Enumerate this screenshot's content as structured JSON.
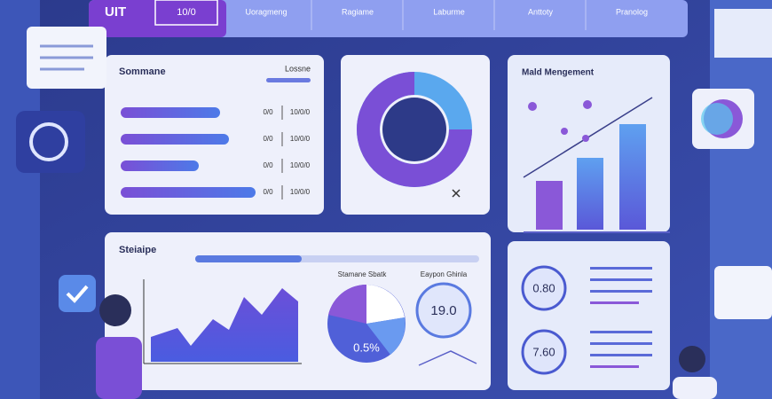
{
  "header": {
    "logo": "UIT",
    "badge": "10/0",
    "tabs": [
      "Uoragmeng",
      "Ragiame",
      "Laburme",
      "Anttoty",
      "Pranolog"
    ]
  },
  "summary": {
    "title": "Sommane",
    "link": "Lossne",
    "rows": [
      {
        "label": "0/0",
        "value": "10/0/0"
      },
      {
        "label": "0/0",
        "value": "10/0/0"
      },
      {
        "label": "0/0",
        "value": "10/0/0"
      },
      {
        "label": "0/0",
        "value": "10/0/0"
      }
    ]
  },
  "management": {
    "title": "Mald Mengement"
  },
  "statistics": {
    "title": "Steiaipe",
    "pie_title": "Stamane Sbatk",
    "pie_label": "0.5%",
    "stat_title": "Eaypon Ghinla",
    "stat_value": "19.0"
  },
  "kpis": [
    "0.80",
    "7.60"
  ]
}
